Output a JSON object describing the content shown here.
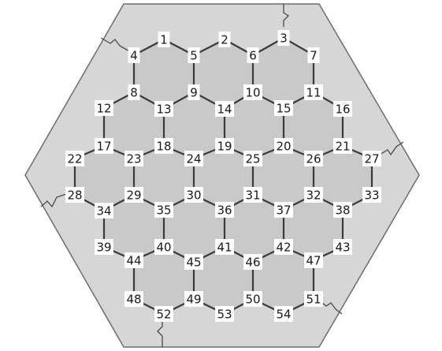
{
  "board": {
    "nodes": [
      {
        "id": "1",
        "label": "1"
      },
      {
        "id": "2",
        "label": "2"
      },
      {
        "id": "3",
        "label": "3"
      },
      {
        "id": "4",
        "label": "4"
      },
      {
        "id": "5",
        "label": "5"
      },
      {
        "id": "6",
        "label": "6"
      },
      {
        "id": "7",
        "label": "7"
      },
      {
        "id": "8",
        "label": "8"
      },
      {
        "id": "9",
        "label": "9"
      },
      {
        "id": "10",
        "label": "10"
      },
      {
        "id": "11",
        "label": "11"
      },
      {
        "id": "12",
        "label": "12"
      },
      {
        "id": "13",
        "label": "13"
      },
      {
        "id": "14",
        "label": "14"
      },
      {
        "id": "15",
        "label": "15"
      },
      {
        "id": "16",
        "label": "16"
      },
      {
        "id": "17",
        "label": "17"
      },
      {
        "id": "18",
        "label": "18"
      },
      {
        "id": "19",
        "label": "19"
      },
      {
        "id": "20",
        "label": "20"
      },
      {
        "id": "21",
        "label": "21"
      },
      {
        "id": "22",
        "label": "22"
      },
      {
        "id": "23",
        "label": "23"
      },
      {
        "id": "24",
        "label": "24"
      },
      {
        "id": "25",
        "label": "25"
      },
      {
        "id": "26",
        "label": "26"
      },
      {
        "id": "27",
        "label": "27"
      },
      {
        "id": "28",
        "label": "28"
      },
      {
        "id": "29",
        "label": "29"
      },
      {
        "id": "30",
        "label": "30"
      },
      {
        "id": "31",
        "label": "31"
      },
      {
        "id": "32",
        "label": "32"
      },
      {
        "id": "33",
        "label": "33"
      },
      {
        "id": "34",
        "label": "34"
      },
      {
        "id": "35",
        "label": "35"
      },
      {
        "id": "36",
        "label": "36"
      },
      {
        "id": "37",
        "label": "37"
      },
      {
        "id": "38",
        "label": "38"
      },
      {
        "id": "39",
        "label": "39"
      },
      {
        "id": "40",
        "label": "40"
      },
      {
        "id": "41",
        "label": "41"
      },
      {
        "id": "42",
        "label": "42"
      },
      {
        "id": "43",
        "label": "43"
      },
      {
        "id": "44",
        "label": "44"
      },
      {
        "id": "45",
        "label": "45"
      },
      {
        "id": "46",
        "label": "46"
      },
      {
        "id": "47",
        "label": "47"
      },
      {
        "id": "48",
        "label": "48"
      },
      {
        "id": "49",
        "label": "49"
      },
      {
        "id": "50",
        "label": "50"
      },
      {
        "id": "51",
        "label": "51"
      },
      {
        "id": "52",
        "label": "52"
      },
      {
        "id": "53",
        "label": "53"
      },
      {
        "id": "54",
        "label": "54"
      }
    ],
    "edges": [
      [
        "4",
        "1"
      ],
      [
        "1",
        "5"
      ],
      [
        "5",
        "2"
      ],
      [
        "2",
        "6"
      ],
      [
        "6",
        "3"
      ],
      [
        "3",
        "7"
      ],
      [
        "4",
        "8"
      ],
      [
        "5",
        "9"
      ],
      [
        "6",
        "10"
      ],
      [
        "7",
        "11"
      ],
      [
        "12",
        "8"
      ],
      [
        "8",
        "13"
      ],
      [
        "13",
        "9"
      ],
      [
        "9",
        "14"
      ],
      [
        "14",
        "10"
      ],
      [
        "10",
        "15"
      ],
      [
        "15",
        "11"
      ],
      [
        "11",
        "16"
      ],
      [
        "12",
        "17"
      ],
      [
        "13",
        "18"
      ],
      [
        "14",
        "19"
      ],
      [
        "15",
        "20"
      ],
      [
        "16",
        "21"
      ],
      [
        "22",
        "17"
      ],
      [
        "17",
        "23"
      ],
      [
        "23",
        "18"
      ],
      [
        "18",
        "24"
      ],
      [
        "24",
        "19"
      ],
      [
        "19",
        "25"
      ],
      [
        "25",
        "20"
      ],
      [
        "20",
        "26"
      ],
      [
        "26",
        "21"
      ],
      [
        "21",
        "27"
      ],
      [
        "22",
        "28"
      ],
      [
        "23",
        "29"
      ],
      [
        "24",
        "30"
      ],
      [
        "25",
        "31"
      ],
      [
        "26",
        "32"
      ],
      [
        "27",
        "33"
      ],
      [
        "28",
        "34"
      ],
      [
        "34",
        "29"
      ],
      [
        "29",
        "35"
      ],
      [
        "35",
        "30"
      ],
      [
        "30",
        "36"
      ],
      [
        "36",
        "31"
      ],
      [
        "31",
        "37"
      ],
      [
        "37",
        "32"
      ],
      [
        "32",
        "38"
      ],
      [
        "38",
        "33"
      ],
      [
        "34",
        "39"
      ],
      [
        "35",
        "40"
      ],
      [
        "36",
        "41"
      ],
      [
        "37",
        "42"
      ],
      [
        "38",
        "43"
      ],
      [
        "39",
        "44"
      ],
      [
        "44",
        "40"
      ],
      [
        "40",
        "45"
      ],
      [
        "45",
        "41"
      ],
      [
        "41",
        "46"
      ],
      [
        "46",
        "42"
      ],
      [
        "42",
        "47"
      ],
      [
        "47",
        "43"
      ],
      [
        "44",
        "48"
      ],
      [
        "45",
        "49"
      ],
      [
        "46",
        "50"
      ],
      [
        "47",
        "51"
      ],
      [
        "48",
        "52"
      ],
      [
        "52",
        "49"
      ],
      [
        "49",
        "53"
      ],
      [
        "53",
        "50"
      ],
      [
        "50",
        "54"
      ],
      [
        "54",
        "51"
      ]
    ]
  }
}
